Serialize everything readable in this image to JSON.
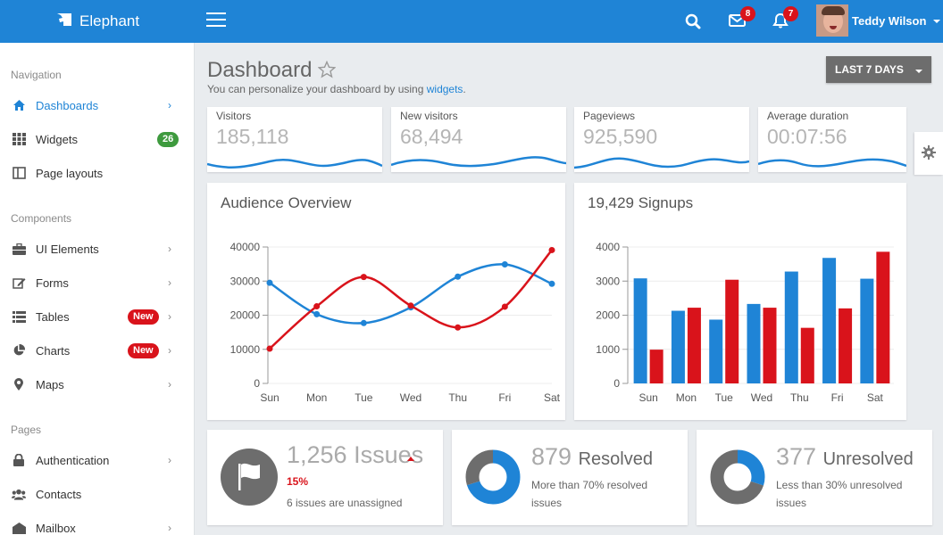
{
  "topbar": {
    "brand": "Elephant",
    "messages_count": "8",
    "notifications_count": "7",
    "user_name": "Teddy Wilson",
    "icons": [
      "elephant-logo-icon",
      "hamburger-icon",
      "search-icon",
      "envelope-icon",
      "bell-icon"
    ]
  },
  "sidebar": {
    "sections": {
      "navigation": "Navigation",
      "components": "Components",
      "pages": "Pages"
    },
    "items": [
      {
        "label": "Dashboards",
        "icon": "home-icon",
        "active": true
      },
      {
        "label": "Widgets",
        "icon": "grid-icon",
        "badge": "26"
      },
      {
        "label": "Page layouts",
        "icon": "columns-icon"
      },
      {
        "label": "UI Elements",
        "icon": "briefcase-icon"
      },
      {
        "label": "Forms",
        "icon": "edit-icon"
      },
      {
        "label": "Tables",
        "icon": "list-icon",
        "badge": "New"
      },
      {
        "label": "Charts",
        "icon": "pie-chart-icon",
        "badge": "New"
      },
      {
        "label": "Maps",
        "icon": "map-marker-icon"
      },
      {
        "label": "Authentication",
        "icon": "lock-icon"
      },
      {
        "label": "Contacts",
        "icon": "users-icon"
      },
      {
        "label": "Mailbox",
        "icon": "mailbox-icon"
      }
    ]
  },
  "header": {
    "title": "Dashboard",
    "subtitle_prefix": "You can personalize your dashboard by using ",
    "subtitle_link": "widgets",
    "subtitle_suffix": ".",
    "range_button": "LAST 7 DAYS"
  },
  "stats": [
    {
      "label": "Visitors",
      "value": "185,118"
    },
    {
      "label": "New visitors",
      "value": "68,494"
    },
    {
      "label": "Pageviews",
      "value": "925,590"
    },
    {
      "label": "Average duration",
      "value": "00:07:56"
    }
  ],
  "audience": {
    "title": "Audience Overview"
  },
  "signups": {
    "title": "19,429 Signups"
  },
  "bottom": {
    "issues": {
      "count": "1,256",
      "label": "Issues",
      "percent": "15%",
      "note": "6 issues are unassigned"
    },
    "resolved": {
      "count": "879",
      "label": "Resolved",
      "note_line1": "More than 70% resolved",
      "note_line2": "issues"
    },
    "unresolved": {
      "count": "377",
      "label": "Unresolved",
      "note_line1": "Less than 30% unresolved",
      "note_line2": "issues"
    }
  },
  "colors": {
    "primary": "#1f84d6",
    "danger": "#d9131b",
    "success": "#3e9a3e"
  },
  "chart_data": [
    {
      "type": "line",
      "title": "Audience Overview",
      "categories": [
        "Sun",
        "Mon",
        "Tue",
        "Wed",
        "Thu",
        "Fri",
        "Sat"
      ],
      "y_ticks": [
        "0",
        "10000",
        "20000",
        "30000",
        "40000"
      ],
      "ylim": [
        0,
        40000
      ],
      "series": [
        {
          "color": "#1f84d6",
          "values": [
            29500,
            20300,
            17700,
            22300,
            31300,
            34900,
            29200
          ]
        },
        {
          "color": "#d9131b",
          "values": [
            10200,
            22600,
            31200,
            22800,
            16400,
            22500,
            39100
          ]
        }
      ],
      "grid": true
    },
    {
      "type": "bar",
      "title": "19,429 Signups",
      "categories": [
        "Sun",
        "Mon",
        "Tue",
        "Wed",
        "Thu",
        "Fri",
        "Sat"
      ],
      "y_ticks": [
        "0",
        "1000",
        "2000",
        "3000",
        "4000"
      ],
      "ylim": [
        0,
        4000
      ],
      "series": [
        {
          "color": "#1f84d6",
          "values": [
            3080,
            2130,
            1870,
            2330,
            3280,
            3680,
            3070
          ]
        },
        {
          "color": "#d9131b",
          "values": [
            990,
            2220,
            3040,
            2220,
            1630,
            2200,
            3860
          ]
        }
      ],
      "grid": true
    },
    {
      "type": "pie",
      "title": "879 Resolved",
      "slices": [
        {
          "label": "Resolved",
          "value": 70,
          "color": "#1f84d6"
        },
        {
          "label": "Unresolved",
          "value": 30,
          "color": "#6d6d6d"
        }
      ]
    },
    {
      "type": "pie",
      "title": "377 Unresolved",
      "slices": [
        {
          "label": "Unresolved",
          "value": 30,
          "color": "#1f84d6"
        },
        {
          "label": "Resolved",
          "value": 70,
          "color": "#6d6d6d"
        }
      ]
    }
  ]
}
